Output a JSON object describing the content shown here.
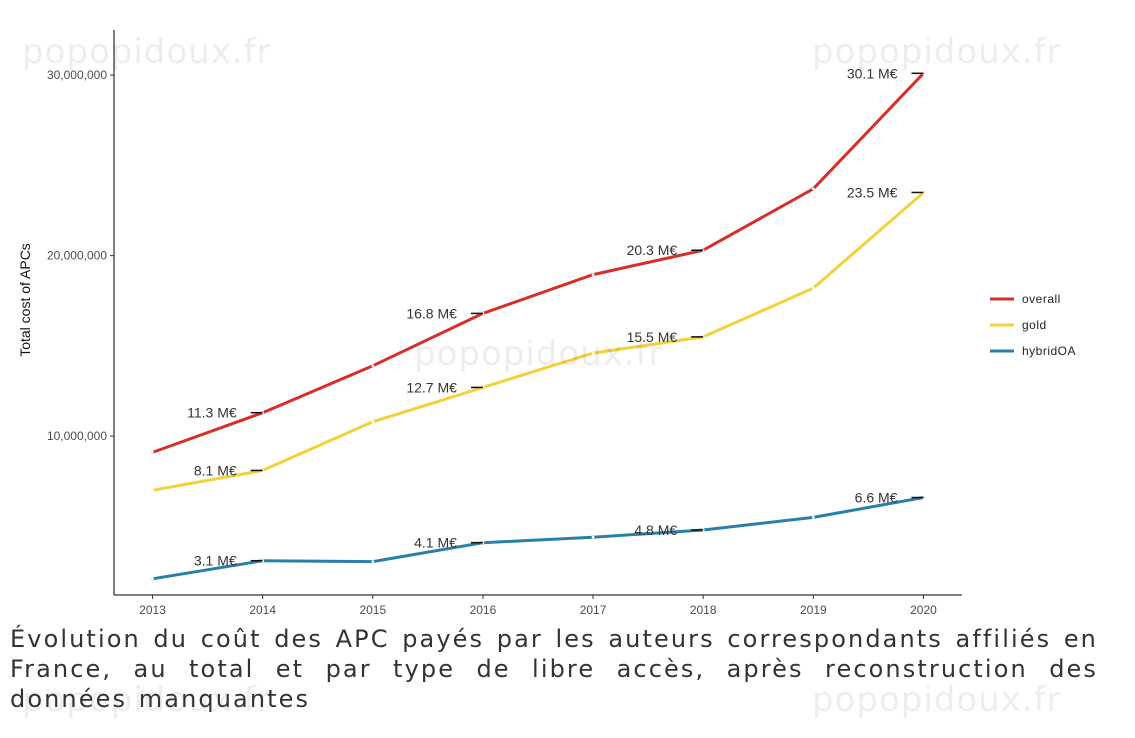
{
  "chart_data": {
    "type": "line",
    "x": [
      2013,
      2014,
      2015,
      2016,
      2017,
      2018,
      2019,
      2020
    ],
    "ylabel": "Total cost of APCs",
    "xlabel": "",
    "ylim": [
      1200000,
      32500000
    ],
    "xlim": [
      2012.65,
      2020.35
    ],
    "yticks": [
      10000000,
      20000000,
      30000000
    ],
    "ytick_labels": [
      "10,000,000",
      "20,000,000",
      "30,000,000"
    ],
    "grid": false,
    "legend_position": "right",
    "series": [
      {
        "name": "overall",
        "color": "#d62f2a",
        "values": [
          9100000,
          11300000,
          13900000,
          16800000,
          18950000,
          20300000,
          23700000,
          30100000
        ],
        "labels": [
          {
            "x": 2014,
            "text": "11.3 M€"
          },
          {
            "x": 2016,
            "text": "16.8 M€"
          },
          {
            "x": 2018,
            "text": "20.3 M€"
          },
          {
            "x": 2020,
            "text": "30.1 M€"
          }
        ]
      },
      {
        "name": "gold",
        "color": "#f2d13a",
        "values": [
          7000000,
          8100000,
          10800000,
          12700000,
          14600000,
          15500000,
          18200000,
          23500000
        ],
        "labels": [
          {
            "x": 2014,
            "text": "8.1 M€"
          },
          {
            "x": 2016,
            "text": "12.7 M€"
          },
          {
            "x": 2018,
            "text": "15.5 M€"
          },
          {
            "x": 2020,
            "text": "23.5 M€"
          }
        ]
      },
      {
        "name": "hybridOA",
        "color": "#2a7fa8",
        "values": [
          2100000,
          3100000,
          3050000,
          4100000,
          4400000,
          4800000,
          5500000,
          6600000
        ],
        "labels": [
          {
            "x": 2014,
            "text": "3.1 M€"
          },
          {
            "x": 2016,
            "text": "4.1 M€"
          },
          {
            "x": 2018,
            "text": "4.8 M€"
          },
          {
            "x": 2020,
            "text": "6.6 M€"
          }
        ]
      }
    ]
  },
  "caption": "Évolution du coût des APC payés par les auteurs correspondants affiliés en France, au total et par type de libre accès, après reconstruction des données manquantes",
  "watermark": "popopidoux.fr"
}
